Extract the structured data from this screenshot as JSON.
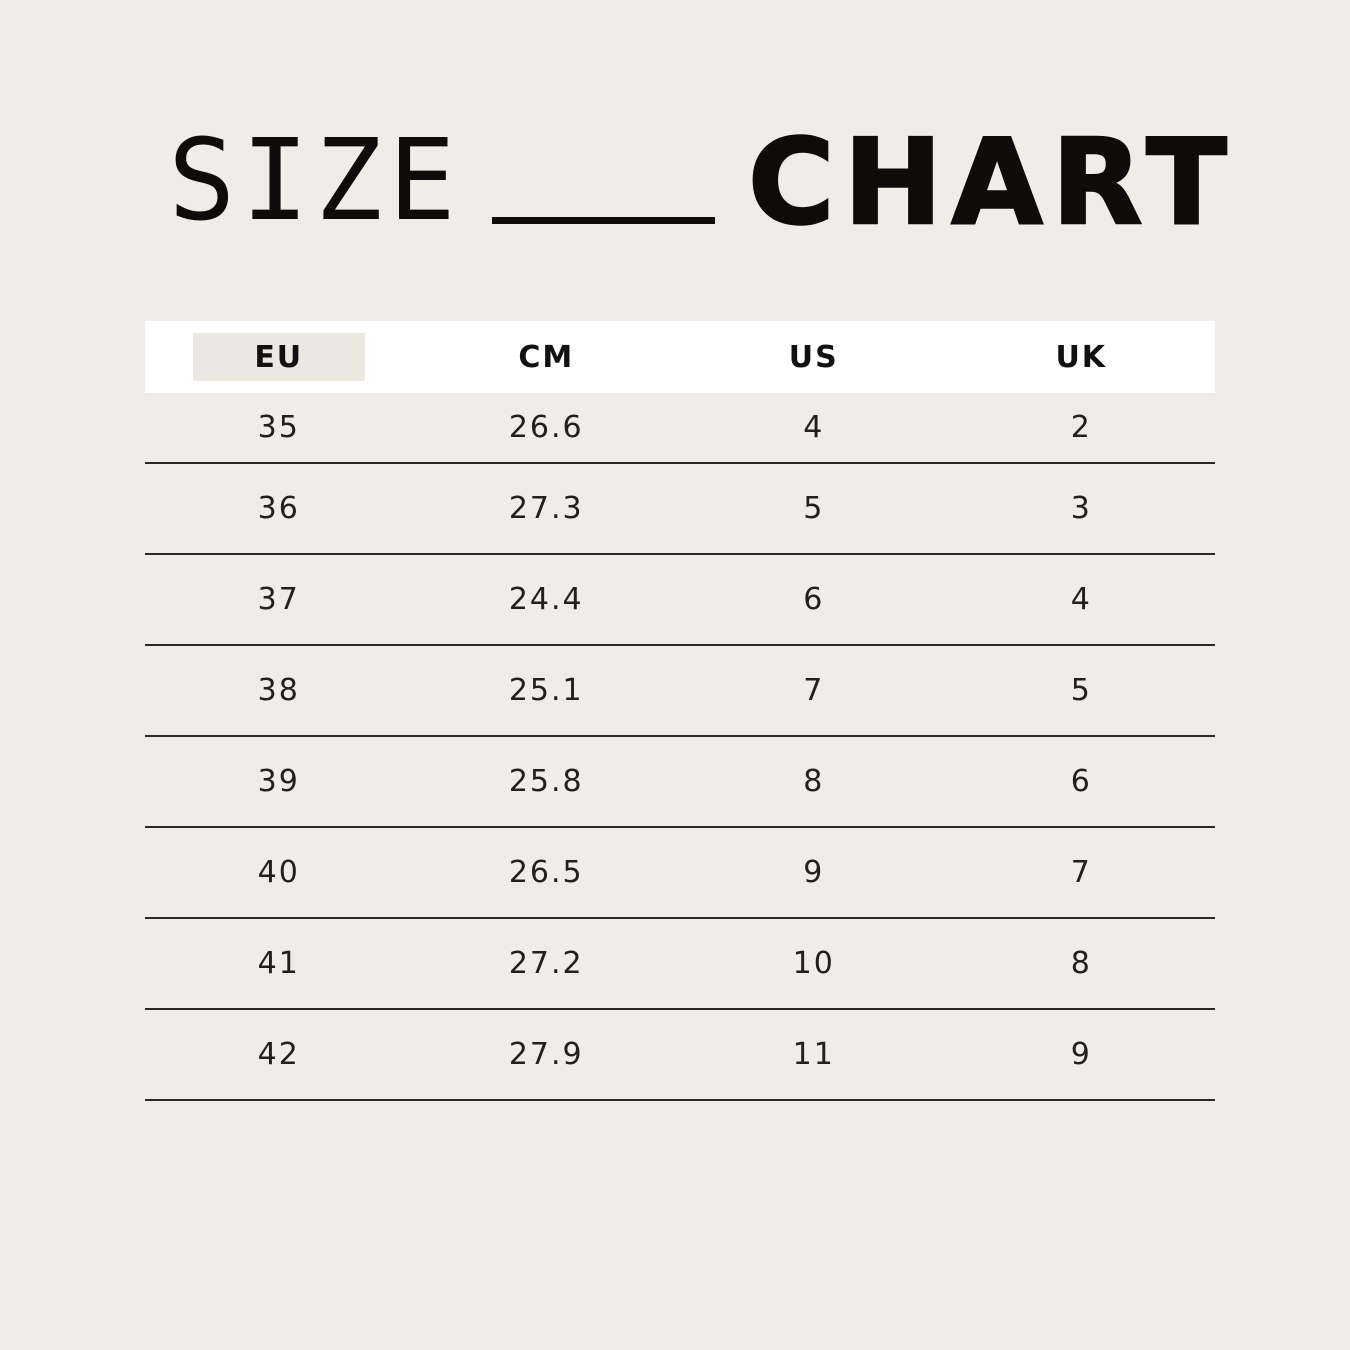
{
  "title": {
    "word1": "SIZE",
    "word2": "CHART"
  },
  "colors": {
    "background": "#EFEDE8",
    "header_background": "#FFFFFF",
    "eu_header_highlight": "#EBE8E1",
    "row_divider": "#2B2A26",
    "text": "#21201B",
    "title_text": "#0D0C0A"
  },
  "table": {
    "columns": [
      {
        "label": "EU",
        "highlighted": true
      },
      {
        "label": "CM",
        "highlighted": false
      },
      {
        "label": "US",
        "highlighted": false
      },
      {
        "label": "UK",
        "highlighted": false
      }
    ]
  },
  "chart_data": {
    "type": "table",
    "title": "SIZE CHART",
    "columns": [
      "EU",
      "CM",
      "US",
      "UK"
    ],
    "rows": [
      [
        35,
        26.6,
        4,
        2
      ],
      [
        36,
        27.3,
        5,
        3
      ],
      [
        37,
        24.4,
        6,
        4
      ],
      [
        38,
        25.1,
        7,
        5
      ],
      [
        39,
        25.8,
        8,
        6
      ],
      [
        40,
        26.5,
        9,
        7
      ],
      [
        41,
        27.2,
        10,
        8
      ],
      [
        42,
        27.9,
        11,
        9
      ]
    ]
  }
}
